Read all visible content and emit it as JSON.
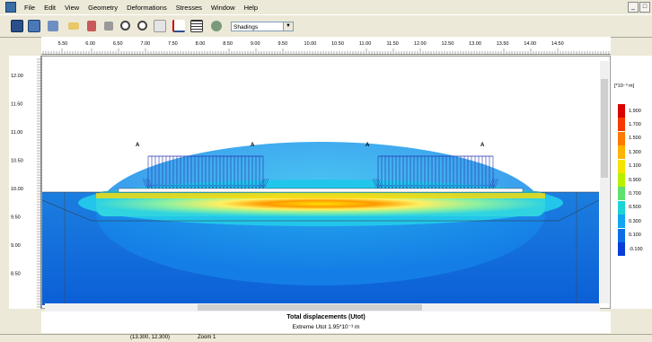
{
  "menu": [
    "File",
    "Edit",
    "View",
    "Geometry",
    "Deformations",
    "Stresses",
    "Window",
    "Help"
  ],
  "window_buttons": [
    "_",
    "□"
  ],
  "toolbar": {
    "icons": [
      "calculate-icon",
      "output-icon",
      "save-icon",
      "open-icon",
      "print-icon",
      "copy-icon",
      "zoom-in-icon",
      "zoom-out-icon",
      "select-icon",
      "cross-section-icon",
      "table-icon",
      "curves-icon"
    ],
    "view_select": "Shadings",
    "view_arrow": "▼"
  },
  "ruler_top": [
    "5.50",
    "6.00",
    "6.50",
    "7.00",
    "7.50",
    "8.00",
    "8.50",
    "9.00",
    "9.50",
    "10.00",
    "10.50",
    "11.00",
    "11.50",
    "12.00",
    "12.50",
    "13.00",
    "13.50",
    "14.00",
    "14.50"
  ],
  "ruler_left": [
    "12.00",
    "11.50",
    "11.00",
    "10.50",
    "10.00",
    "9.50",
    "9.00",
    "8.50"
  ],
  "point_labels": [
    "A",
    "A",
    "A",
    "A"
  ],
  "legend": {
    "unit": "[*10⁻³ m]",
    "values": [
      "1.900",
      "1.700",
      "1.500",
      "1.300",
      "1.100",
      "0.900",
      "0.700",
      "0.500",
      "0.300",
      "0.100",
      "-0.100"
    ],
    "colors": [
      "#d90000",
      "#f43a00",
      "#ff7a00",
      "#ffb300",
      "#f4e400",
      "#b8f000",
      "#5fe070",
      "#1ed3d3",
      "#12a6f0",
      "#0b6fe6",
      "#0a3cd8"
    ]
  },
  "plot": {
    "title": "Total displacements (Utot)",
    "subtitle": "Extreme Utot 1.95*10⁻³ m"
  },
  "status": [
    "(13.300, 12.300)",
    "Zoom 1"
  ]
}
